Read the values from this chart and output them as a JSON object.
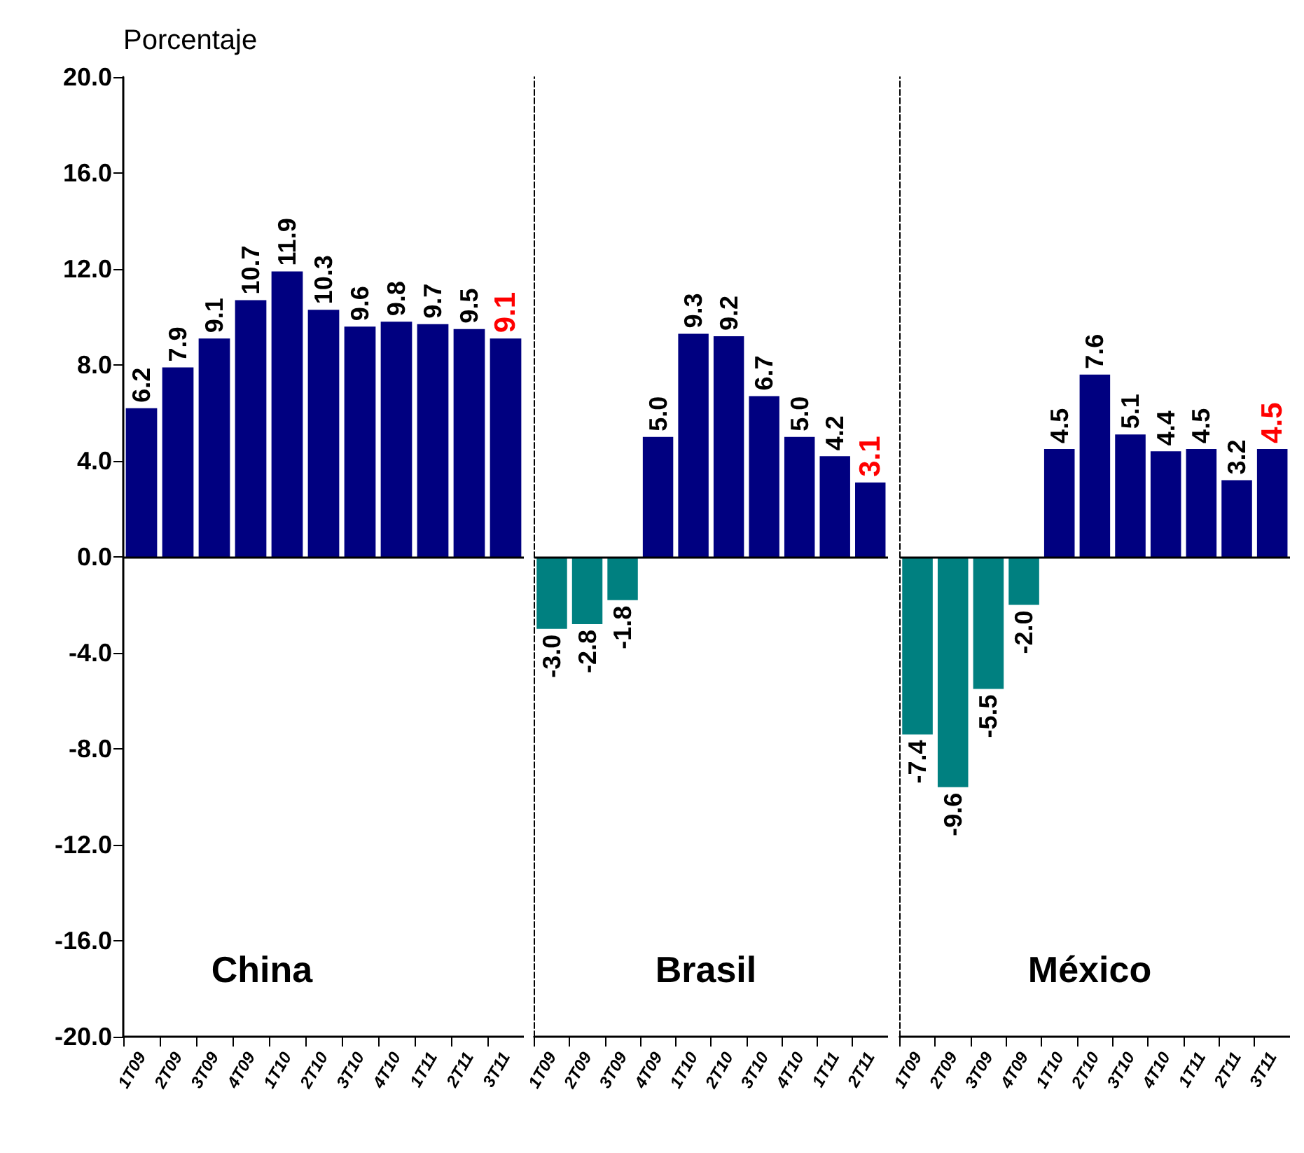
{
  "chart_data": [
    {
      "type": "bar",
      "ylabel": "Porcentaje",
      "categories": [
        "1T09",
        "2T09",
        "3T09",
        "4T09",
        "1T10",
        "2T10",
        "3T10",
        "4T10",
        "1T11",
        "2T11",
        "3T11"
      ],
      "values": [
        6.2,
        7.9,
        9.1,
        10.7,
        11.9,
        10.3,
        9.6,
        9.8,
        9.7,
        9.5,
        9.1
      ],
      "colors": [
        "#000080",
        "#000080",
        "#000080",
        "#000080",
        "#000080",
        "#000080",
        "#000080",
        "#000080",
        "#000080",
        "#000080",
        "#000080"
      ],
      "value_labels": [
        "6.2",
        "7.9",
        "9.1",
        "10.7",
        "11.9",
        "10.3",
        "9.6",
        "9.8",
        "9.7",
        "9.5",
        null
      ],
      "annotations": [
        "China",
        {
          "text": "9.1",
          "x": "3T11",
          "y": 9.1
        }
      ],
      "ylim": [
        -20,
        20
      ],
      "yticks": [
        {
          "value": -20,
          "label": "-20.0"
        },
        {
          "value": -16,
          "label": "-16.0"
        },
        {
          "value": -12,
          "label": "-12.0"
        },
        {
          "value": -8,
          "label": "-8.0"
        },
        {
          "value": -4,
          "label": "-4.0"
        },
        {
          "value": 0,
          "label": "0.0"
        },
        {
          "value": 4,
          "label": "4.0"
        },
        {
          "value": 8,
          "label": "8.0"
        },
        {
          "value": 12,
          "label": "12.0"
        },
        {
          "value": 16,
          "label": "16.0"
        },
        {
          "value": 20,
          "label": "20.0"
        }
      ],
      "ref_lines": [
        {
          "axis": "y",
          "value": 0
        }
      ]
    },
    {
      "type": "bar",
      "categories": [
        "1T09",
        "2T09",
        "3T09",
        "4T09",
        "1T10",
        "2T10",
        "3T10",
        "4T10",
        "1T11",
        "2T11"
      ],
      "values": [
        -3.0,
        -2.8,
        -1.8,
        5.0,
        9.3,
        9.2,
        6.7,
        5.0,
        4.2,
        3.1
      ],
      "colors": [
        "#008080",
        "#008080",
        "#008080",
        "#000080",
        "#000080",
        "#000080",
        "#000080",
        "#000080",
        "#000080",
        "#000080"
      ],
      "value_labels": [
        "-3.0",
        "-2.8",
        "-1.8",
        "5.0",
        "9.3",
        "9.2",
        "6.7",
        "5.0",
        "4.2",
        null
      ],
      "annotations": [
        "Brasil",
        {
          "text": "3.1",
          "x": "2T11",
          "y": 3.1
        }
      ],
      "ylim": [
        -20,
        20
      ],
      "tick_labels": "x",
      "ref_lines": [
        {
          "axis": "y",
          "value": 0
        }
      ]
    },
    {
      "type": "bar",
      "categories": [
        "1T09",
        "2T09",
        "3T09",
        "4T09",
        "1T10",
        "2T10",
        "3T10",
        "4T10",
        "1T11",
        "2T11",
        "3T11"
      ],
      "values": [
        -7.4,
        -9.6,
        -5.5,
        -2.0,
        4.5,
        7.6,
        5.1,
        4.4,
        4.5,
        3.2,
        4.5
      ],
      "colors": [
        "#008080",
        "#008080",
        "#008080",
        "#008080",
        "#000080",
        "#000080",
        "#000080",
        "#000080",
        "#000080",
        "#000080",
        "#000080"
      ],
      "value_labels": [
        "-7.4",
        "-9.6",
        "-5.5",
        "-2.0",
        "4.5",
        "7.6",
        "5.1",
        "4.4",
        "4.5",
        "3.2",
        null
      ],
      "annotations": [
        "México",
        {
          "text": "4.5",
          "x": "3T11",
          "y": 4.5
        }
      ],
      "ylim": [
        -20,
        20
      ],
      "tick_labels": "x",
      "ref_lines": [
        {
          "axis": "y",
          "value": 0
        }
      ]
    }
  ]
}
